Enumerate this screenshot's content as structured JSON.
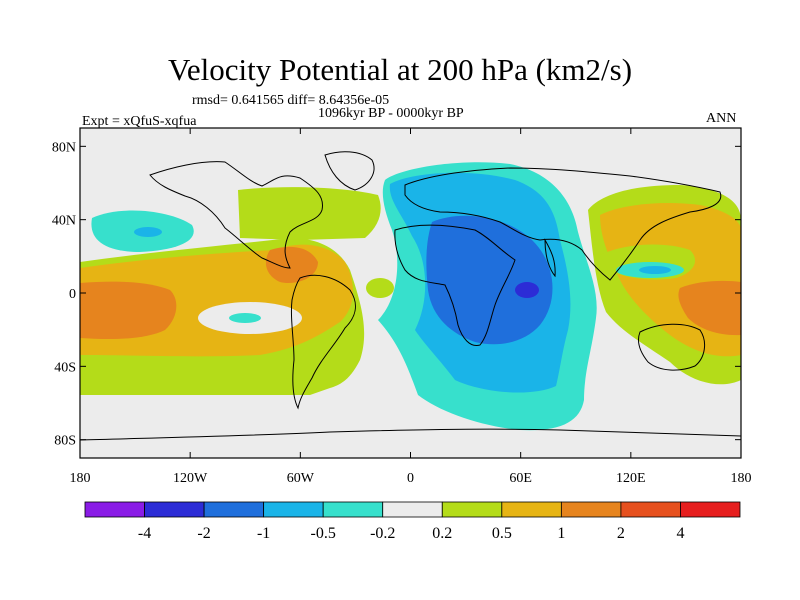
{
  "title": "Velocity Potential at 200 hPa (km2/s)",
  "stats": "rmsd= 0.641565 diff= 8.64356e-05",
  "period": "1096kyr BP - 0000kyr BP",
  "experiment": "Expt = xQfuS-xqfua",
  "season": "ANN",
  "map": {
    "projection": "cylindrical equidistant",
    "lon_range": [
      -180,
      180
    ],
    "lat_range": [
      -90,
      90
    ],
    "lat_ticks": [
      {
        "value": 80,
        "label": "80N"
      },
      {
        "value": 40,
        "label": "40N"
      },
      {
        "value": 0,
        "label": "0"
      },
      {
        "value": -40,
        "label": "40S"
      },
      {
        "value": -80,
        "label": "80S"
      }
    ],
    "lon_ticks": [
      {
        "value": -180,
        "label": "180"
      },
      {
        "value": -120,
        "label": "120W"
      },
      {
        "value": -60,
        "label": "60W"
      },
      {
        "value": 0,
        "label": "0"
      },
      {
        "value": 60,
        "label": "60E"
      },
      {
        "value": 120,
        "label": "120E"
      },
      {
        "value": 180,
        "label": "180"
      }
    ]
  },
  "colorbar": {
    "colors": [
      "#8a1ce6",
      "#2c2cd6",
      "#1f6fdc",
      "#1ab4e8",
      "#37e0cc",
      "#ececec",
      "#b4dc19",
      "#e6b414",
      "#e6841e",
      "#e6501e",
      "#e61e1e"
    ],
    "labels": [
      "-4",
      "-2",
      "-1",
      "-0.5",
      "-0.2",
      "0.2",
      "0.5",
      "1",
      "2",
      "4"
    ]
  }
}
